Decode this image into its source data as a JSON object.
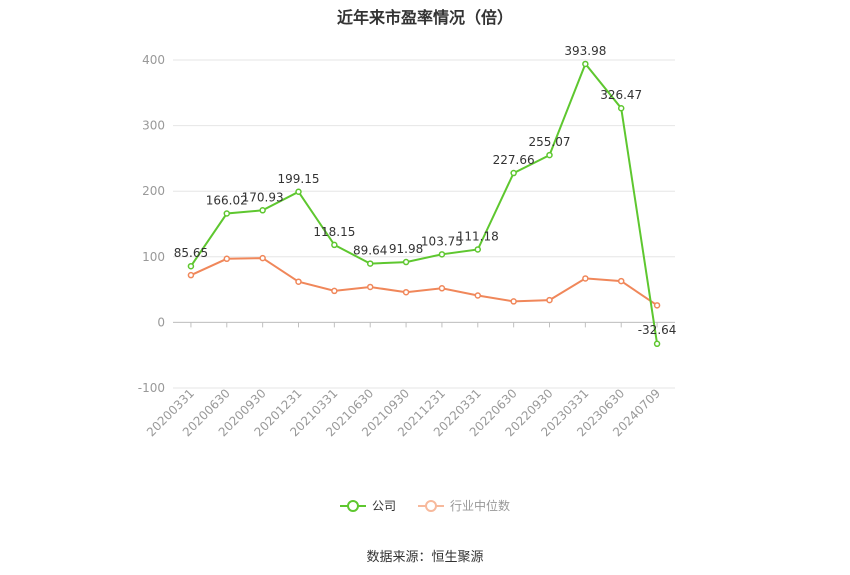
{
  "chart_data": {
    "type": "line",
    "title": "近年来市盈率情况（倍）",
    "categories": [
      "20200331",
      "20200630",
      "20200930",
      "20201231",
      "20210331",
      "20210630",
      "20210930",
      "20211231",
      "20220331",
      "20220630",
      "20220930",
      "20230331",
      "20230630",
      "20240709"
    ],
    "series": [
      {
        "name": "公司",
        "color": "#5ec72f",
        "values": [
          85.65,
          166.02,
          170.93,
          199.15,
          118.15,
          89.64,
          91.98,
          103.75,
          111.18,
          227.66,
          255.07,
          393.98,
          326.47,
          -32.64
        ],
        "labels": [
          "85.65",
          "166.02",
          "170.93",
          "199.15",
          "118.15",
          "89.64",
          "91.98",
          "103.75",
          "111.18",
          "227.66",
          "255.07",
          "393.98",
          "326.47",
          "-32.64"
        ]
      },
      {
        "name": "行业中位数",
        "color": "#f0875a",
        "values": [
          72,
          97,
          98,
          62,
          48,
          54,
          46,
          52,
          41,
          32,
          34,
          67,
          63,
          26
        ]
      }
    ],
    "yticks": [
      -100,
      0,
      100,
      200,
      300,
      400
    ],
    "ylim": [
      -100,
      400
    ],
    "grid": true,
    "legend_position": "bottom-center"
  },
  "source_text": "数据来源：恒生聚源"
}
